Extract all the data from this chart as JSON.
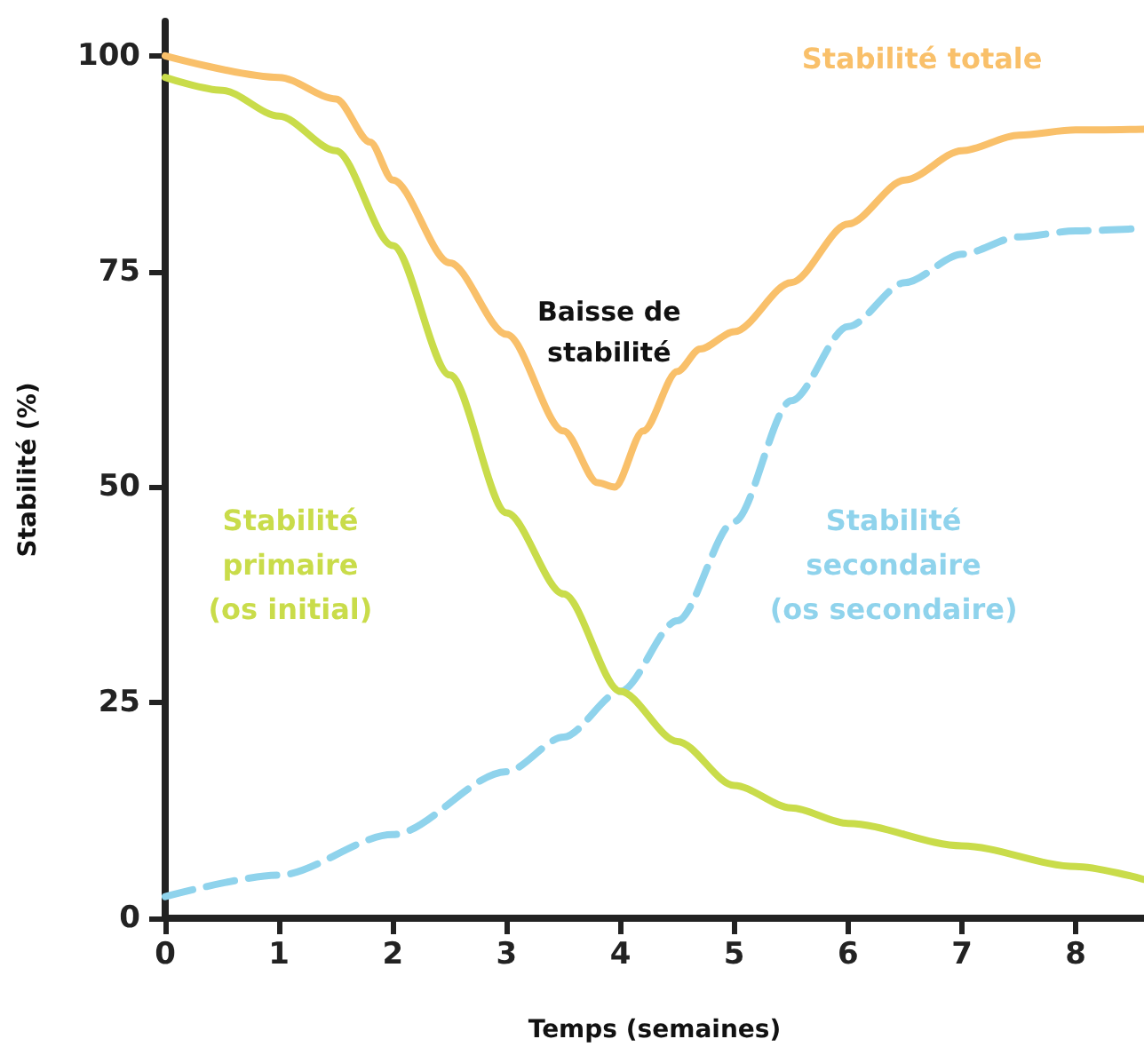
{
  "chart_data": {
    "type": "line",
    "xlabel": "Temps (semaines)",
    "ylabel": "Stabilité (%)",
    "xlim": [
      0,
      8.6
    ],
    "ylim": [
      0,
      104
    ],
    "xticks": [
      0,
      1,
      2,
      3,
      4,
      5,
      6,
      7,
      8
    ],
    "yticks": [
      0,
      25,
      50,
      75,
      100
    ],
    "grid": false,
    "marker": "none",
    "line_style": "solid",
    "series": [
      {
        "name": "Stabilité totale",
        "color": "#f9c06a",
        "x": [
          0,
          1,
          1.5,
          1.8,
          2,
          2.5,
          3,
          3.5,
          3.8,
          3.95,
          4.2,
          4.5,
          4.7,
          5,
          5.5,
          6,
          6.5,
          7,
          7.5,
          8,
          8.6
        ],
        "values": [
          100,
          97.5,
          95,
          90,
          85.6,
          76,
          67.7,
          56.5,
          50.5,
          50,
          56.5,
          63.4,
          66,
          68,
          73.7,
          80.5,
          85.6,
          89,
          90.8,
          91.4,
          91.5
        ]
      },
      {
        "name": "Stabilité\nprimaire\n(os initial)",
        "color": "#c9dc4a",
        "x": [
          0,
          0.5,
          1,
          1.5,
          2,
          2.5,
          3,
          3.5,
          4,
          4.5,
          5,
          5.5,
          6,
          7,
          8,
          8.6
        ],
        "values": [
          97.5,
          96,
          93,
          89,
          78,
          63,
          47,
          37.6,
          26.3,
          20.5,
          15.4,
          12.8,
          11,
          8.4,
          6,
          4.5
        ]
      },
      {
        "name": "Stabilité\nsecondaire\n(os secondaire)",
        "color": "#8fd3ec",
        "line_style": "dashed",
        "x": [
          0,
          1,
          2,
          3,
          3.5,
          4,
          4.5,
          5,
          5.5,
          6,
          6.5,
          7,
          7.5,
          8,
          8.6
        ],
        "values": [
          2.5,
          5,
          9.7,
          17,
          21,
          26.3,
          34.5,
          46,
          60,
          68.6,
          73.7,
          77,
          79,
          79.7,
          80
        ]
      }
    ],
    "annotations": [
      "Baisse de\nstabilité"
    ]
  }
}
